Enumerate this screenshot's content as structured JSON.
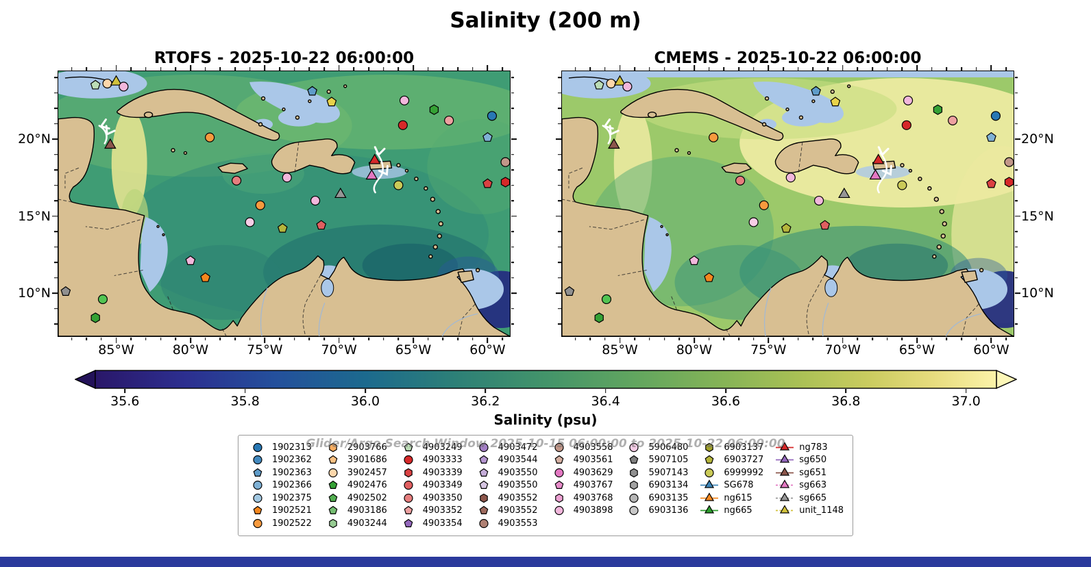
{
  "title": "Salinity (200 m)",
  "watermark": "Glider/Argo Search Window 2025-10-15 06:00:00 to 2025-10-22 06:00:00",
  "panels": [
    {
      "id": "rtofs",
      "title": "RTOFS - 2025-10-22 06:00:00",
      "lat_label_side": "left"
    },
    {
      "id": "cmems",
      "title": "CMEMS - 2025-10-22 06:00:00",
      "lat_label_side": "right"
    }
  ],
  "axes": {
    "lon_range": [
      -88.9,
      -58.5
    ],
    "lat_range": [
      7.2,
      24.4
    ],
    "lon_ticks": [
      {
        "value": -85,
        "label": "85°W"
      },
      {
        "value": -80,
        "label": "80°W"
      },
      {
        "value": -75,
        "label": "75°W"
      },
      {
        "value": -70,
        "label": "70°W"
      },
      {
        "value": -65,
        "label": "65°W"
      },
      {
        "value": -60,
        "label": "60°W"
      }
    ],
    "lat_ticks": [
      {
        "value": 20,
        "label": "20°N"
      },
      {
        "value": 15,
        "label": "15°N"
      },
      {
        "value": 10,
        "label": "10°N"
      }
    ]
  },
  "colorbar": {
    "label": "Salinity (psu)",
    "vmin": 35.55,
    "vmax": 37.05,
    "ticks": [
      {
        "value": 35.6,
        "label": "35.6"
      },
      {
        "value": 35.8,
        "label": "35.8"
      },
      {
        "value": 36.0,
        "label": "36.0"
      },
      {
        "value": 36.2,
        "label": "36.2"
      },
      {
        "value": 36.4,
        "label": "36.4"
      },
      {
        "value": 36.6,
        "label": "36.6"
      },
      {
        "value": 36.8,
        "label": "36.8"
      },
      {
        "value": 37.0,
        "label": "37.0"
      }
    ],
    "gradient": [
      [
        0.0,
        "#2a1769"
      ],
      [
        0.1,
        "#2c2f90"
      ],
      [
        0.2,
        "#24509c"
      ],
      [
        0.3,
        "#1c6a8e"
      ],
      [
        0.4,
        "#2d8077"
      ],
      [
        0.5,
        "#43946a"
      ],
      [
        0.6,
        "#62a65f"
      ],
      [
        0.7,
        "#87b456"
      ],
      [
        0.78,
        "#a9c055"
      ],
      [
        0.86,
        "#cbcc60"
      ],
      [
        0.93,
        "#e7dc7e"
      ],
      [
        1.0,
        "#fbf3a9"
      ]
    ],
    "tip_left": "#231259",
    "tip_right": "#fdf7b8"
  },
  "legend": {
    "columns": [
      [
        {
          "label": "1902313",
          "shape": "circle",
          "color": "#2878b4"
        },
        {
          "label": "1902362",
          "shape": "circle",
          "color": "#4389be"
        },
        {
          "label": "1902363",
          "shape": "pentagon",
          "color": "#5f9cc9"
        },
        {
          "label": "1902366",
          "shape": "circle",
          "color": "#7fb1d5"
        },
        {
          "label": "1902375",
          "shape": "circle",
          "color": "#a2c8e2"
        },
        {
          "label": "1902521",
          "shape": "pentagon",
          "color": "#f5871e"
        },
        {
          "label": "1902522",
          "shape": "circle",
          "color": "#f79a3e"
        }
      ],
      [
        {
          "label": "2903766",
          "shape": "hexagon",
          "color": "#f9ad60"
        },
        {
          "label": "3901686",
          "shape": "pentagon",
          "color": "#fbc183"
        },
        {
          "label": "3902457",
          "shape": "circle",
          "color": "#fdd7ab"
        },
        {
          "label": "4902476",
          "shape": "pentagon",
          "color": "#35a135"
        },
        {
          "label": "4902502",
          "shape": "pentagon",
          "color": "#52ae50"
        },
        {
          "label": "4903186",
          "shape": "pentagon",
          "color": "#74bd71"
        },
        {
          "label": "4903244",
          "shape": "hexagon",
          "color": "#97cc93"
        }
      ],
      [
        {
          "label": "4903249",
          "shape": "pentagon",
          "color": "#bcddb6"
        },
        {
          "label": "4903333",
          "shape": "circle",
          "color": "#d62829"
        },
        {
          "label": "4903339",
          "shape": "hexagon",
          "color": "#da4142"
        },
        {
          "label": "4903349",
          "shape": "circle",
          "color": "#e05f60"
        },
        {
          "label": "4903350",
          "shape": "circle",
          "color": "#e67e7e"
        },
        {
          "label": "4903352",
          "shape": "pentagon",
          "color": "#eda0a0"
        },
        {
          "label": "4903354",
          "shape": "pentagon",
          "color": "#9468bd"
        }
      ],
      [
        {
          "label": "4903472",
          "shape": "circle",
          "color": "#a37ec6"
        },
        {
          "label": "4903544",
          "shape": "pentagon",
          "color": "#b495cf"
        },
        {
          "label": "4903550",
          "shape": "pentagon",
          "color": "#c5add9"
        },
        {
          "label": "4903550",
          "shape": "pentagon",
          "color": "#d7c6e3"
        },
        {
          "label": "4903552",
          "shape": "hexagon",
          "color": "#8c564b"
        },
        {
          "label": "4903552",
          "shape": "pentagon",
          "color": "#9d6a5e"
        },
        {
          "label": "4903553",
          "shape": "circle",
          "color": "#af8073"
        }
      ],
      [
        {
          "label": "4903558",
          "shape": "circle",
          "color": "#c29789"
        },
        {
          "label": "4903561",
          "shape": "pentagon",
          "color": "#d5b0a2"
        },
        {
          "label": "4903629",
          "shape": "circle",
          "color": "#e378c2"
        },
        {
          "label": "4903767",
          "shape": "pentagon",
          "color": "#e88cca"
        },
        {
          "label": "4903768",
          "shape": "hexagon",
          "color": "#eda1d3"
        },
        {
          "label": "4903898",
          "shape": "circle",
          "color": "#f2b7dc"
        }
      ],
      [
        {
          "label": "5906480",
          "shape": "circle",
          "color": "#f7cde6"
        },
        {
          "label": "5907105",
          "shape": "pentagon",
          "color": "#7f7f7f"
        },
        {
          "label": "5907143",
          "shape": "hexagon",
          "color": "#909090"
        },
        {
          "label": "6903134",
          "shape": "hexagon",
          "color": "#a2a2a2"
        },
        {
          "label": "6903135",
          "shape": "circle",
          "color": "#b5b5b5"
        },
        {
          "label": "6903136",
          "shape": "circle",
          "color": "#c8c8c8"
        }
      ],
      [
        {
          "label": "6903137",
          "shape": "hexagon",
          "color": "#a2a22a"
        },
        {
          "label": "6903727",
          "shape": "pentagon",
          "color": "#b5b53c"
        },
        {
          "label": "6999992",
          "shape": "circle",
          "color": "#caca58"
        },
        {
          "label": "SG678",
          "shape": "triangle",
          "color": "#3d85b8",
          "line": "#3d85b8"
        },
        {
          "label": "ng615",
          "shape": "triangle",
          "color": "#f5871e",
          "line": "#f5871e"
        },
        {
          "label": "ng665",
          "shape": "triangle",
          "color": "#2d9e2d",
          "line": "#2d9e2d"
        }
      ],
      [
        {
          "label": "ng783",
          "shape": "triangle",
          "color": "#d62829",
          "line": "#d62829"
        },
        {
          "label": "sg650",
          "shape": "triangle",
          "color": "#9468bd",
          "line": "#9468bd"
        },
        {
          "label": "sg651",
          "shape": "triangle",
          "color": "#8c564b",
          "line": "#8c564b"
        },
        {
          "label": "sg663",
          "shape": "triangle",
          "color": "#e378c2",
          "line": "#e378c2",
          "dash": true
        },
        {
          "label": "sg665",
          "shape": "triangle",
          "color": "#969696",
          "line": "#969696",
          "dash": true
        },
        {
          "label": "unit_1148",
          "shape": "triangle",
          "color": "#d2c23c",
          "line": "#d2c23c",
          "dash": true
        }
      ]
    ]
  },
  "chart_data": {
    "type": "heatmap",
    "subtype": "filled-contour map comparison (two panels)",
    "variable": "Salinity",
    "units": "psu",
    "depth_m": 200,
    "panels": [
      "RTOFS - 2025-10-22 06:00:00",
      "CMEMS - 2025-10-22 06:00:00"
    ],
    "lon_range_deg": [
      -88.9,
      -58.5
    ],
    "lat_range_deg": [
      7.2,
      24.4
    ],
    "colorbar_ticks_psu": [
      35.6,
      35.8,
      36.0,
      36.2,
      36.4,
      36.6,
      36.8,
      37.0
    ],
    "platforms": [
      {
        "shape": "pentagon",
        "color": "#bcddb6",
        "lon": -86.4,
        "lat": 23.5
      },
      {
        "shape": "circle",
        "color": "#fdd7ab",
        "lon": -85.6,
        "lat": 23.6
      },
      {
        "shape": "triangle",
        "color": "#d2c23c",
        "lon": -85.0,
        "lat": 23.7,
        "size": 9,
        "id": "unit_1148"
      },
      {
        "shape": "circle",
        "color": "#f2b7dc",
        "lon": -84.5,
        "lat": 23.4
      },
      {
        "shape": "chevron",
        "lon": -85.8,
        "lat": 20.9,
        "rot": 160
      },
      {
        "shape": "chevron",
        "lon": -85.5,
        "lat": 20.5,
        "rot": 120
      },
      {
        "shape": "triangle",
        "color": "#8c564b",
        "lon": -85.4,
        "lat": 19.6,
        "size": 9,
        "id": "sg651"
      },
      {
        "shape": "pentagon",
        "color": "#5f9cc9",
        "lon": -71.8,
        "lat": 23.1
      },
      {
        "shape": "pentagon",
        "color": "#e8d24a",
        "lon": -70.5,
        "lat": 22.4
      },
      {
        "shape": "circle",
        "color": "#f2b7dc",
        "lon": -65.6,
        "lat": 22.5
      },
      {
        "shape": "hexagon",
        "color": "#35a135",
        "lon": -63.6,
        "lat": 21.9
      },
      {
        "shape": "circle",
        "color": "#2878b4",
        "lon": -59.7,
        "lat": 21.5
      },
      {
        "shape": "circle",
        "color": "#d62829",
        "lon": -65.7,
        "lat": 20.9
      },
      {
        "shape": "circle",
        "color": "#eda0a0",
        "lon": -62.6,
        "lat": 21.2
      },
      {
        "shape": "pentagon",
        "color": "#7fb1d5",
        "lon": -60.0,
        "lat": 20.1
      },
      {
        "shape": "circle",
        "color": "#f79a3e",
        "lon": -78.7,
        "lat": 20.1
      },
      {
        "shape": "circle",
        "color": "#e67e7e",
        "lon": -76.9,
        "lat": 17.3
      },
      {
        "shape": "circle",
        "color": "#f2b7dc",
        "lon": -73.5,
        "lat": 17.5
      },
      {
        "shape": "chevron",
        "lon": -67.3,
        "lat": 19.2,
        "rot": 100
      },
      {
        "shape": "triangle",
        "color": "#d62829",
        "lon": -67.6,
        "lat": 18.6,
        "size": 9,
        "id": "ng783"
      },
      {
        "shape": "triangle",
        "color": "#e378c2",
        "lon": -67.8,
        "lat": 17.6,
        "size": 9,
        "id": "sg663"
      },
      {
        "shape": "chevron",
        "lon": -66.9,
        "lat": 17.9,
        "rot": 60
      },
      {
        "shape": "triangle",
        "color": "#969696",
        "lon": -69.9,
        "lat": 16.4,
        "size": 9,
        "id": "sg665"
      },
      {
        "shape": "circle",
        "color": "#caca58",
        "lon": -66.0,
        "lat": 17.0
      },
      {
        "shape": "pentagon",
        "color": "#da4142",
        "lon": -60.0,
        "lat": 17.1
      },
      {
        "shape": "hexagon",
        "color": "#d62829",
        "lon": -58.8,
        "lat": 17.2
      },
      {
        "shape": "circle",
        "color": "#c29789",
        "lon": -58.8,
        "lat": 18.5
      },
      {
        "shape": "circle",
        "color": "#f2b7dc",
        "lon": -71.6,
        "lat": 16.0
      },
      {
        "shape": "circle",
        "color": "#f79a3e",
        "lon": -75.3,
        "lat": 15.7
      },
      {
        "shape": "circle",
        "color": "#f7cde6",
        "lon": -76.0,
        "lat": 14.6
      },
      {
        "shape": "pentagon",
        "color": "#b5b53c",
        "lon": -73.8,
        "lat": 14.2
      },
      {
        "shape": "pentagon",
        "color": "#e05f60",
        "lon": -71.2,
        "lat": 14.4
      },
      {
        "shape": "pentagon",
        "color": "#f2b7dc",
        "lon": -80.0,
        "lat": 12.1
      },
      {
        "shape": "pentagon",
        "color": "#f5871e",
        "lon": -79.0,
        "lat": 11.0
      },
      {
        "shape": "pentagon",
        "color": "#909090",
        "lon": -88.4,
        "lat": 10.1
      },
      {
        "shape": "circle",
        "color": "#52c452",
        "lon": -85.9,
        "lat": 9.6
      },
      {
        "shape": "hexagon",
        "color": "#35a135",
        "lon": -86.4,
        "lat": 8.4
      }
    ]
  },
  "colors": {
    "land": "#d8bf92",
    "shallow_water": "#aac7e8",
    "coastline": "#000000",
    "bottom_bar": "#2b3a9c"
  }
}
